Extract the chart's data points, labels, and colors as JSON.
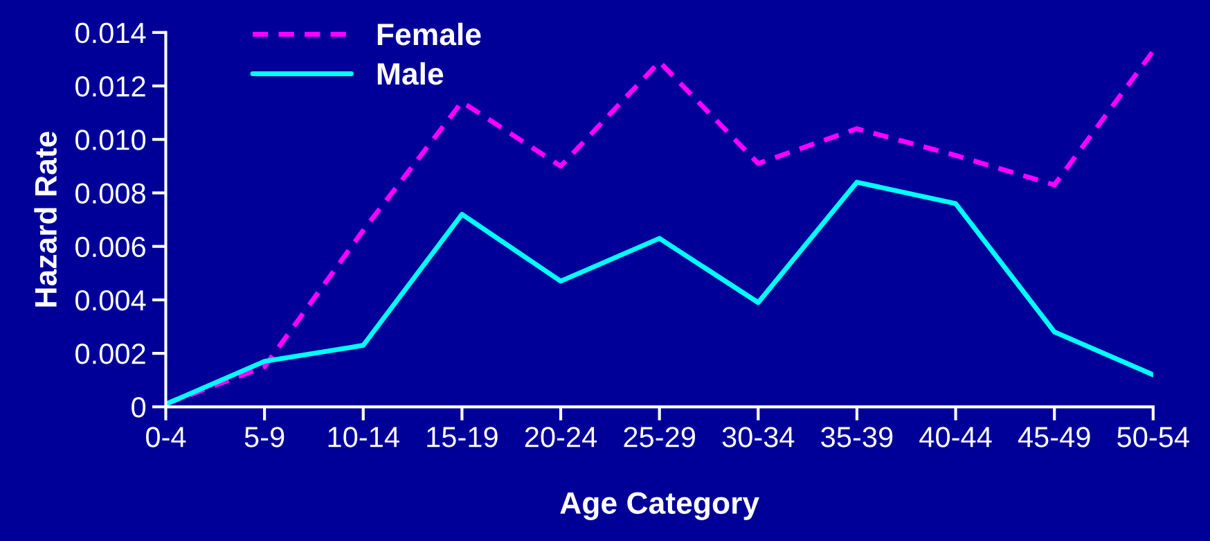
{
  "chart_data": {
    "type": "line",
    "xlabel": "Age Category",
    "ylabel": "Hazard Rate",
    "categories": [
      "0-4",
      "5-9",
      "10-14",
      "15-19",
      "20-24",
      "25-29",
      "30-34",
      "35-39",
      "40-44",
      "45-49",
      "50-54"
    ],
    "series": [
      {
        "name": "Female",
        "color": "#ff00ff",
        "line_style": "dashed",
        "values": [
          0.0001,
          0.0015,
          0.0066,
          0.0114,
          0.009,
          0.0129,
          0.0091,
          0.0104,
          0.0094,
          0.0083,
          0.0133
        ]
      },
      {
        "name": "Male",
        "color": "#00ffff",
        "line_style": "solid",
        "values": [
          0.0001,
          0.0017,
          0.0023,
          0.0072,
          0.0047,
          0.0063,
          0.0039,
          0.0084,
          0.0076,
          0.0028,
          0.0012
        ]
      }
    ],
    "ylim": [
      0,
      0.014
    ],
    "yticks": [
      0,
      {
        "value": 0.002,
        "label": "0.002"
      },
      {
        "value": 0.004,
        "label": "0.004"
      },
      {
        "value": 0.006,
        "label": "0.006"
      },
      {
        "value": 0.008,
        "label": "0.008"
      },
      {
        "value": 0.01,
        "label": "0.010"
      },
      {
        "value": 0.012,
        "label": "0.012"
      },
      {
        "value": 0.014,
        "label": "0.014"
      }
    ],
    "grid": false,
    "legend": "top left",
    "marker": "none"
  }
}
